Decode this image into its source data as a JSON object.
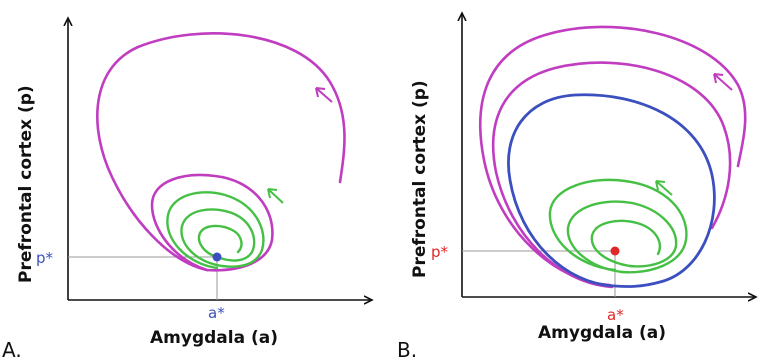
{
  "panels": [
    {
      "letter": "A.",
      "xlabel": "Amygdala (a)",
      "ylabel": "Prefrontal cortex (p)",
      "p_star": "p*",
      "a_star": "a*",
      "colors": {
        "equilibrium": "#3b4fbf",
        "outer_orbit": "#c03cc0",
        "inner_orbit": "#45c045"
      }
    },
    {
      "letter": "B.",
      "xlabel": "Amygdala (a)",
      "ylabel": "Prefrontal cortex (p)",
      "p_star": "p*",
      "a_star": "a*",
      "colors": {
        "equilibrium": "#e02828",
        "outer_orbit": "#c03cc0",
        "inner_orbit": "#45c045",
        "limit_cycle": "#3b4fbf"
      }
    }
  ]
}
